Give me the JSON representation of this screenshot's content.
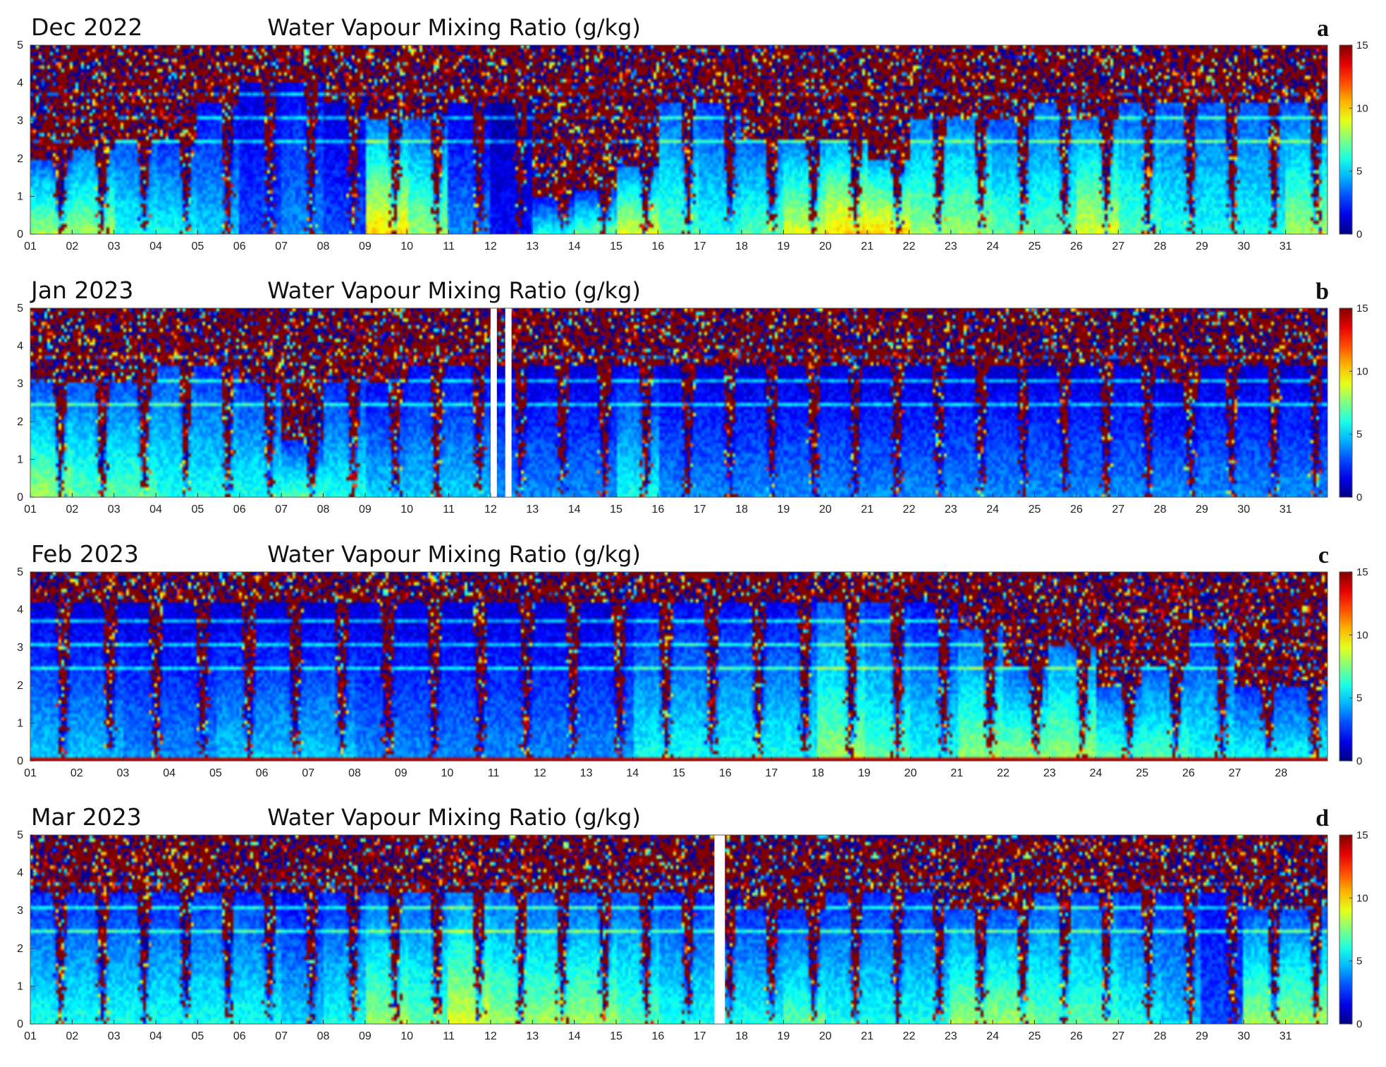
{
  "chart_data": [
    {
      "type": "heatmap",
      "panel_letter": "a",
      "month_label": "Dec 2022",
      "title": "Water Vapour Mixing Ratio (g/kg)",
      "xlabel": "",
      "ylabel": "",
      "x_ticks": [
        "01",
        "02",
        "03",
        "04",
        "05",
        "06",
        "07",
        "08",
        "09",
        "10",
        "11",
        "12",
        "13",
        "14",
        "15",
        "16",
        "17",
        "18",
        "19",
        "20",
        "21",
        "22",
        "23",
        "24",
        "25",
        "26",
        "27",
        "28",
        "29",
        "30",
        "31"
      ],
      "xlim": [
        1,
        32
      ],
      "y_ticks": [
        "0",
        "1",
        "2",
        "3",
        "4",
        "5"
      ],
      "ylim": [
        0,
        5
      ],
      "colorbar": {
        "ticks": [
          "0",
          "5",
          "10",
          "15"
        ],
        "range": [
          0,
          15
        ],
        "colormap": "jet"
      },
      "data_gaps": [],
      "daily_profile_g_per_kg": [
        {
          "day": 1,
          "low": 8,
          "mid": 5,
          "top": 2.0
        },
        {
          "day": 2,
          "low": 8,
          "mid": 6,
          "top": 2.2
        },
        {
          "day": 3,
          "low": 6,
          "mid": 5,
          "top": 2.5
        },
        {
          "day": 4,
          "low": 6,
          "mid": 4,
          "top": 2.5
        },
        {
          "day": 5,
          "low": 5,
          "mid": 3,
          "top": 3.5
        },
        {
          "day": 6,
          "low": 3,
          "mid": 2,
          "top": 4.0
        },
        {
          "day": 7,
          "low": 4,
          "mid": 3,
          "top": 4.0
        },
        {
          "day": 8,
          "low": 3,
          "mid": 2,
          "top": 3.5
        },
        {
          "day": 9,
          "low": 10,
          "mid": 6,
          "top": 3.0
        },
        {
          "day": 10,
          "low": 8,
          "mid": 5,
          "top": 3.0
        },
        {
          "day": 11,
          "low": 4,
          "mid": 2,
          "top": 3.5
        },
        {
          "day": 12,
          "low": 2,
          "mid": 1,
          "top": 3.5
        },
        {
          "day": 13,
          "low": 6,
          "mid": 3,
          "top": 1.0
        },
        {
          "day": 14,
          "low": 7,
          "mid": 4,
          "top": 1.2
        },
        {
          "day": 15,
          "low": 9,
          "mid": 6,
          "top": 1.8
        },
        {
          "day": 16,
          "low": 7,
          "mid": 5,
          "top": 3.5
        },
        {
          "day": 17,
          "low": 6,
          "mid": 4,
          "top": 3.5
        },
        {
          "day": 18,
          "low": 7,
          "mid": 5,
          "top": 2.5
        },
        {
          "day": 19,
          "low": 9,
          "mid": 6,
          "top": 2.5
        },
        {
          "day": 20,
          "low": 10,
          "mid": 7,
          "top": 2.5
        },
        {
          "day": 21,
          "low": 10,
          "mid": 7,
          "top": 2.0
        },
        {
          "day": 22,
          "low": 8,
          "mid": 6,
          "top": 3.0
        },
        {
          "day": 23,
          "low": 8,
          "mid": 6,
          "top": 3.0
        },
        {
          "day": 24,
          "low": 7,
          "mid": 5,
          "top": 3.0
        },
        {
          "day": 25,
          "low": 7,
          "mid": 5,
          "top": 3.5
        },
        {
          "day": 26,
          "low": 9,
          "mid": 6,
          "top": 3.0
        },
        {
          "day": 27,
          "low": 7,
          "mid": 5,
          "top": 3.5
        },
        {
          "day": 28,
          "low": 6,
          "mid": 5,
          "top": 3.5
        },
        {
          "day": 29,
          "low": 6,
          "mid": 5,
          "top": 3.5
        },
        {
          "day": 30,
          "low": 6,
          "mid": 5,
          "top": 3.5
        },
        {
          "day": 31,
          "low": 8,
          "mid": 5,
          "top": 3.5
        }
      ]
    },
    {
      "type": "heatmap",
      "panel_letter": "b",
      "month_label": "Jan 2023",
      "title": "Water Vapour Mixing Ratio (g/kg)",
      "xlabel": "",
      "ylabel": "",
      "x_ticks": [
        "01",
        "02",
        "03",
        "04",
        "05",
        "06",
        "07",
        "08",
        "09",
        "10",
        "11",
        "12",
        "13",
        "14",
        "15",
        "16",
        "17",
        "18",
        "19",
        "20",
        "21",
        "22",
        "23",
        "24",
        "25",
        "26",
        "27",
        "28",
        "29",
        "30",
        "31"
      ],
      "xlim": [
        1,
        32
      ],
      "y_ticks": [
        "0",
        "1",
        "2",
        "3",
        "4",
        "5"
      ],
      "ylim": [
        0,
        5
      ],
      "colorbar": {
        "ticks": [
          "0",
          "5",
          "10",
          "15"
        ],
        "range": [
          0,
          15
        ],
        "colormap": "jet"
      },
      "data_gaps": [
        [
          12.0,
          12.15
        ],
        [
          12.35,
          12.5
        ]
      ],
      "daily_profile_g_per_kg": [
        {
          "day": 1,
          "low": 8,
          "mid": 5,
          "top": 3.0
        },
        {
          "day": 2,
          "low": 7,
          "mid": 5,
          "top": 3.0
        },
        {
          "day": 3,
          "low": 7,
          "mid": 5,
          "top": 3.0
        },
        {
          "day": 4,
          "low": 6,
          "mid": 5,
          "top": 3.5
        },
        {
          "day": 5,
          "low": 6,
          "mid": 4,
          "top": 3.5
        },
        {
          "day": 6,
          "low": 6,
          "mid": 4,
          "top": 3.0
        },
        {
          "day": 7,
          "low": 7,
          "mid": 4,
          "top": 1.5
        },
        {
          "day": 8,
          "low": 6,
          "mid": 4,
          "top": 3.0
        },
        {
          "day": 9,
          "low": 5,
          "mid": 3,
          "top": 3.0
        },
        {
          "day": 10,
          "low": 5,
          "mid": 3,
          "top": 3.5
        },
        {
          "day": 11,
          "low": 5,
          "mid": 3,
          "top": 3.5
        },
        {
          "day": 12,
          "low": 4,
          "mid": 2,
          "top": 3.5
        },
        {
          "day": 13,
          "low": 4,
          "mid": 2,
          "top": 3.5
        },
        {
          "day": 14,
          "low": 4,
          "mid": 2,
          "top": 3.5
        },
        {
          "day": 15,
          "low": 6,
          "mid": 3,
          "top": 3.5
        },
        {
          "day": 16,
          "low": 4,
          "mid": 2,
          "top": 3.5
        },
        {
          "day": 17,
          "low": 4,
          "mid": 2,
          "top": 3.5
        },
        {
          "day": 18,
          "low": 4,
          "mid": 2,
          "top": 3.5
        },
        {
          "day": 19,
          "low": 4,
          "mid": 2,
          "top": 3.5
        },
        {
          "day": 20,
          "low": 4,
          "mid": 2,
          "top": 3.5
        },
        {
          "day": 21,
          "low": 4,
          "mid": 2,
          "top": 3.5
        },
        {
          "day": 22,
          "low": 4,
          "mid": 2,
          "top": 3.5
        },
        {
          "day": 23,
          "low": 4,
          "mid": 2,
          "top": 3.5
        },
        {
          "day": 24,
          "low": 4,
          "mid": 2,
          "top": 3.5
        },
        {
          "day": 25,
          "low": 4,
          "mid": 2,
          "top": 3.5
        },
        {
          "day": 26,
          "low": 4,
          "mid": 2,
          "top": 3.5
        },
        {
          "day": 27,
          "low": 4,
          "mid": 2,
          "top": 3.5
        },
        {
          "day": 28,
          "low": 4,
          "mid": 2,
          "top": 3.0
        },
        {
          "day": 29,
          "low": 4,
          "mid": 2,
          "top": 3.5
        },
        {
          "day": 30,
          "low": 4,
          "mid": 2,
          "top": 3.5
        },
        {
          "day": 31,
          "low": 4,
          "mid": 2,
          "top": 3.5
        }
      ]
    },
    {
      "type": "heatmap",
      "panel_letter": "c",
      "month_label": "Feb 2023",
      "title": "Water Vapour Mixing Ratio (g/kg)",
      "xlabel": "",
      "ylabel": "",
      "x_ticks": [
        "01",
        "02",
        "03",
        "04",
        "05",
        "06",
        "07",
        "08",
        "09",
        "10",
        "11",
        "12",
        "13",
        "14",
        "15",
        "16",
        "17",
        "18",
        "19",
        "20",
        "21",
        "22",
        "23",
        "24",
        "25",
        "26",
        "27",
        "28"
      ],
      "xlim": [
        1,
        29
      ],
      "y_ticks": [
        "0",
        "1",
        "2",
        "3",
        "4",
        "5"
      ],
      "ylim": [
        0,
        5
      ],
      "colorbar": {
        "ticks": [
          "0",
          "5",
          "10",
          "15"
        ],
        "range": [
          0,
          15
        ],
        "colormap": "jet"
      },
      "data_gaps": [],
      "daily_profile_g_per_kg": [
        {
          "day": 1,
          "low": 5,
          "mid": 2,
          "top": 4.2
        },
        {
          "day": 2,
          "low": 5,
          "mid": 2,
          "top": 4.2
        },
        {
          "day": 3,
          "low": 4,
          "mid": 2,
          "top": 4.2
        },
        {
          "day": 4,
          "low": 4,
          "mid": 2,
          "top": 4.2
        },
        {
          "day": 5,
          "low": 5,
          "mid": 2,
          "top": 4.2
        },
        {
          "day": 6,
          "low": 5,
          "mid": 2,
          "top": 4.2
        },
        {
          "day": 7,
          "low": 5,
          "mid": 2,
          "top": 4.2
        },
        {
          "day": 8,
          "low": 4,
          "mid": 2,
          "top": 4.2
        },
        {
          "day": 9,
          "low": 4,
          "mid": 2,
          "top": 4.2
        },
        {
          "day": 10,
          "low": 4,
          "mid": 2,
          "top": 4.2
        },
        {
          "day": 11,
          "low": 4,
          "mid": 2,
          "top": 4.2
        },
        {
          "day": 12,
          "low": 4,
          "mid": 2,
          "top": 4.2
        },
        {
          "day": 13,
          "low": 4,
          "mid": 2,
          "top": 4.2
        },
        {
          "day": 14,
          "low": 6,
          "mid": 3,
          "top": 4.2
        },
        {
          "day": 15,
          "low": 6,
          "mid": 3,
          "top": 4.2
        },
        {
          "day": 16,
          "low": 6,
          "mid": 3,
          "top": 4.2
        },
        {
          "day": 17,
          "low": 6,
          "mid": 3,
          "top": 4.2
        },
        {
          "day": 18,
          "low": 8,
          "mid": 5,
          "top": 4.2
        },
        {
          "day": 19,
          "low": 7,
          "mid": 4,
          "top": 4.2
        },
        {
          "day": 20,
          "low": 6,
          "mid": 3,
          "top": 4.2
        },
        {
          "day": 21,
          "low": 8,
          "mid": 5,
          "top": 3.5
        },
        {
          "day": 22,
          "low": 8,
          "mid": 5,
          "top": 2.5
        },
        {
          "day": 23,
          "low": 8,
          "mid": 6,
          "top": 3.0
        },
        {
          "day": 24,
          "low": 7,
          "mid": 5,
          "top": 2.0
        },
        {
          "day": 25,
          "low": 7,
          "mid": 5,
          "top": 2.5
        },
        {
          "day": 26,
          "low": 6,
          "mid": 4,
          "top": 3.5
        },
        {
          "day": 27,
          "low": 6,
          "mid": 4,
          "top": 2.0
        },
        {
          "day": 28,
          "low": 6,
          "mid": 4,
          "top": 2.0
        }
      ],
      "surface_layer_g_per_kg": 14
    },
    {
      "type": "heatmap",
      "panel_letter": "d",
      "month_label": "Mar 2023",
      "title": "Water Vapour Mixing Ratio (g/kg)",
      "xlabel": "",
      "ylabel": "",
      "x_ticks": [
        "01",
        "02",
        "03",
        "04",
        "05",
        "06",
        "07",
        "08",
        "09",
        "10",
        "11",
        "12",
        "13",
        "14",
        "15",
        "16",
        "17",
        "18",
        "19",
        "20",
        "21",
        "22",
        "23",
        "24",
        "25",
        "26",
        "27",
        "28",
        "29",
        "30",
        "31"
      ],
      "xlim": [
        1,
        32
      ],
      "y_ticks": [
        "0",
        "1",
        "2",
        "3",
        "4",
        "5"
      ],
      "ylim": [
        0,
        5
      ],
      "colorbar": {
        "ticks": [
          "0",
          "5",
          "10",
          "15"
        ],
        "range": [
          0,
          15
        ],
        "colormap": "jet"
      },
      "data_gaps": [
        [
          17.35,
          17.6
        ]
      ],
      "daily_profile_g_per_kg": [
        {
          "day": 1,
          "low": 6,
          "mid": 4,
          "top": 3.5
        },
        {
          "day": 2,
          "low": 6,
          "mid": 4,
          "top": 3.5
        },
        {
          "day": 3,
          "low": 6,
          "mid": 4,
          "top": 3.5
        },
        {
          "day": 4,
          "low": 6,
          "mid": 4,
          "top": 3.5
        },
        {
          "day": 5,
          "low": 6,
          "mid": 4,
          "top": 3.5
        },
        {
          "day": 6,
          "low": 6,
          "mid": 4,
          "top": 3.5
        },
        {
          "day": 7,
          "low": 5,
          "mid": 3,
          "top": 3.5
        },
        {
          "day": 8,
          "low": 6,
          "mid": 4,
          "top": 3.5
        },
        {
          "day": 9,
          "low": 8,
          "mid": 5,
          "top": 3.5
        },
        {
          "day": 10,
          "low": 7,
          "mid": 5,
          "top": 3.5
        },
        {
          "day": 11,
          "low": 9,
          "mid": 6,
          "top": 3.5
        },
        {
          "day": 12,
          "low": 8,
          "mid": 5,
          "top": 3.5
        },
        {
          "day": 13,
          "low": 8,
          "mid": 5,
          "top": 3.5
        },
        {
          "day": 14,
          "low": 8,
          "mid": 5,
          "top": 3.5
        },
        {
          "day": 15,
          "low": 7,
          "mid": 5,
          "top": 3.5
        },
        {
          "day": 16,
          "low": 6,
          "mid": 4,
          "top": 3.5
        },
        {
          "day": 17,
          "low": 6,
          "mid": 4,
          "top": 3.5
        },
        {
          "day": 18,
          "low": 6,
          "mid": 4,
          "top": 3.0
        },
        {
          "day": 19,
          "low": 7,
          "mid": 4,
          "top": 3.0
        },
        {
          "day": 20,
          "low": 6,
          "mid": 4,
          "top": 3.5
        },
        {
          "day": 21,
          "low": 6,
          "mid": 4,
          "top": 3.5
        },
        {
          "day": 22,
          "low": 6,
          "mid": 4,
          "top": 3.5
        },
        {
          "day": 23,
          "low": 8,
          "mid": 5,
          "top": 3.0
        },
        {
          "day": 24,
          "low": 8,
          "mid": 5,
          "top": 3.0
        },
        {
          "day": 25,
          "low": 7,
          "mid": 5,
          "top": 3.5
        },
        {
          "day": 26,
          "low": 7,
          "mid": 5,
          "top": 3.5
        },
        {
          "day": 27,
          "low": 6,
          "mid": 4,
          "top": 3.5
        },
        {
          "day": 28,
          "low": 5,
          "mid": 4,
          "top": 3.5
        },
        {
          "day": 29,
          "low": 3,
          "mid": 3,
          "top": 3.5
        },
        {
          "day": 30,
          "low": 8,
          "mid": 5,
          "top": 3.0
        },
        {
          "day": 31,
          "low": 8,
          "mid": 5,
          "top": 3.0
        }
      ]
    }
  ]
}
